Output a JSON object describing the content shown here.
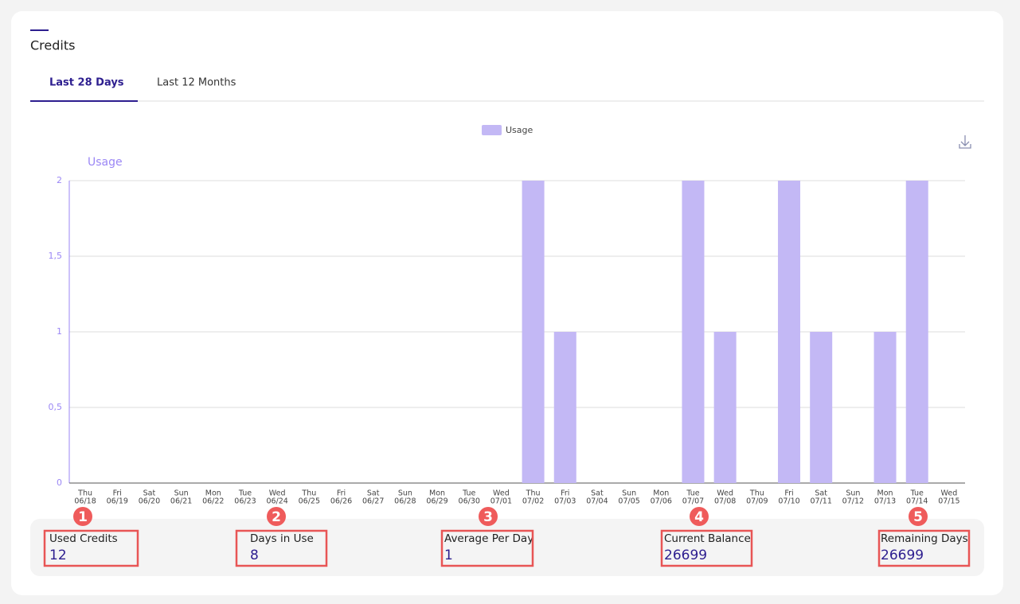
{
  "header": {
    "title": "Credits"
  },
  "tabs": [
    "Last 28 Days",
    "Last 12 Months"
  ],
  "chart_data": {
    "type": "bar",
    "y_label": "Usage",
    "categories": [
      [
        "Thu",
        "06/18"
      ],
      [
        "Fri",
        "06/19"
      ],
      [
        "Sat",
        "06/20"
      ],
      [
        "Sun",
        "06/21"
      ],
      [
        "Mon",
        "06/22"
      ],
      [
        "Tue",
        "06/23"
      ],
      [
        "Wed",
        "06/24"
      ],
      [
        "Thu",
        "06/25"
      ],
      [
        "Fri",
        "06/26"
      ],
      [
        "Sat",
        "06/27"
      ],
      [
        "Sun",
        "06/28"
      ],
      [
        "Mon",
        "06/29"
      ],
      [
        "Tue",
        "06/30"
      ],
      [
        "Wed",
        "07/01"
      ],
      [
        "Thu",
        "07/02"
      ],
      [
        "Fri",
        "07/03"
      ],
      [
        "Sat",
        "07/04"
      ],
      [
        "Sun",
        "07/05"
      ],
      [
        "Mon",
        "07/06"
      ],
      [
        "Tue",
        "07/07"
      ],
      [
        "Wed",
        "07/08"
      ],
      [
        "Thu",
        "07/09"
      ],
      [
        "Fri",
        "07/10"
      ],
      [
        "Sat",
        "07/11"
      ],
      [
        "Sun",
        "07/12"
      ],
      [
        "Mon",
        "07/13"
      ],
      [
        "Tue",
        "07/14"
      ],
      [
        "Wed",
        "07/15"
      ]
    ],
    "series": [
      {
        "name": "Usage",
        "color": "#c3b8f5",
        "values": [
          0,
          0,
          0,
          0,
          0,
          0,
          0,
          0,
          0,
          0,
          0,
          0,
          0,
          0,
          2,
          1,
          0,
          0,
          0,
          2,
          1,
          0,
          2,
          1,
          0,
          1,
          2,
          0
        ]
      }
    ],
    "ylim": [
      0,
      2
    ],
    "yticks": [
      0,
      {
        "value": 0.5,
        "label": "0,5"
      },
      1,
      {
        "value": 1.5,
        "label": "1,5"
      },
      2
    ],
    "grid": true,
    "legend": "top"
  },
  "stats": [
    {
      "label": "Used Credits",
      "value": 12
    },
    {
      "label": "Days in Use",
      "value": 8
    },
    {
      "label": "Average Per Day",
      "value": 1
    },
    {
      "label": "Current Balance",
      "value": 26699
    },
    {
      "label": "Remaining Days",
      "value": 26699
    }
  ],
  "annotations": [
    1,
    2,
    3,
    4,
    5
  ]
}
